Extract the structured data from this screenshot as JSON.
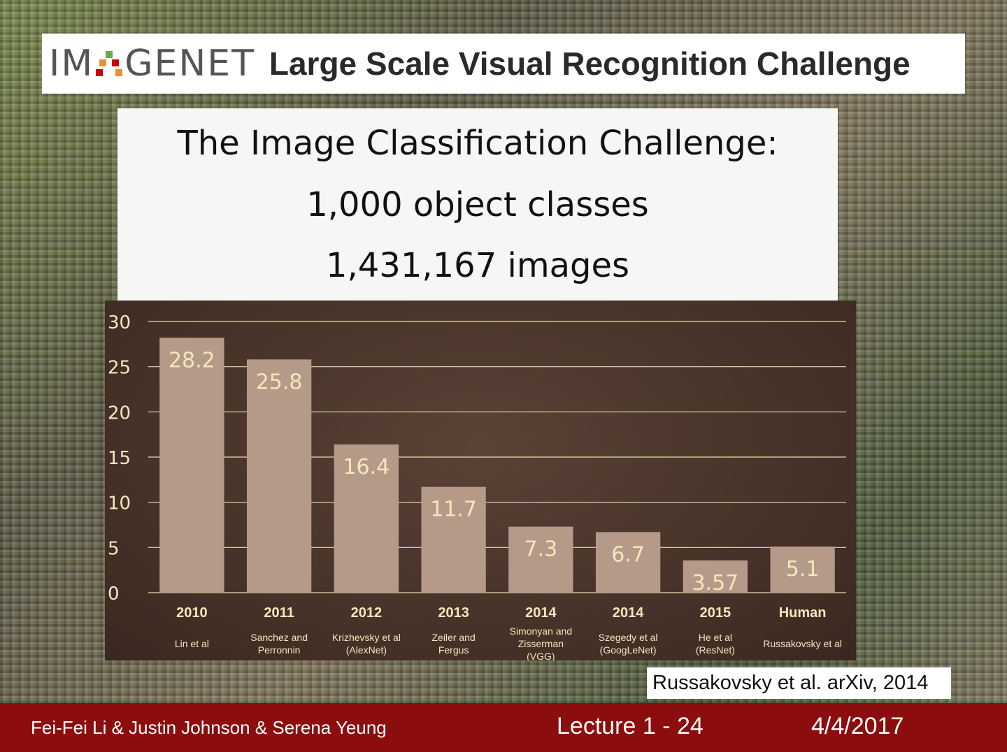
{
  "banner": {
    "logo_text_left": "IM",
    "logo_text_right": "GENET",
    "title": "Large Scale Visual Recognition Challenge"
  },
  "intro": {
    "line1": "The Image Classification Challenge:",
    "line2": "1,000 object classes",
    "line3": "1,431,167 images"
  },
  "chart_data": {
    "type": "bar",
    "categories": [
      "2010",
      "2011",
      "2012",
      "2013",
      "2014",
      "2014",
      "2015",
      "Human"
    ],
    "subcategories": [
      [
        "Lin et al"
      ],
      [
        "Sanchez and",
        "Perronnin"
      ],
      [
        "Krizhevsky et al",
        "(AlexNet)"
      ],
      [
        "Zeiler and",
        "Fergus"
      ],
      [
        "Simonyan and",
        "Zisserman",
        "(VGG)"
      ],
      [
        "Szegedy et al",
        "(GoogLeNet)"
      ],
      [
        "He et al",
        "(ResNet)"
      ],
      [
        "Russakovsky et al"
      ]
    ],
    "values": [
      28.2,
      25.8,
      16.4,
      11.7,
      7.3,
      6.7,
      3.57,
      5.1
    ],
    "value_labels": [
      "28.2",
      "25.8",
      "16.4",
      "11.7",
      "7.3",
      "6.7",
      "3.57",
      "5.1"
    ],
    "yticks": [
      "0",
      "5",
      "10",
      "15",
      "20",
      "25",
      "30"
    ],
    "ylim": [
      0,
      30
    ],
    "grid": true,
    "bar_color": "#b59a89",
    "grid_color": "#e8dcae",
    "label_color": "#f3e8bd"
  },
  "citation": "Russakovsky et al. arXiv, 2014",
  "footer": {
    "authors": "Fei-Fei Li & Justin Johnson & Serena Yeung",
    "lecture": "Lecture 1 -  24",
    "date": "4/4/2017"
  }
}
